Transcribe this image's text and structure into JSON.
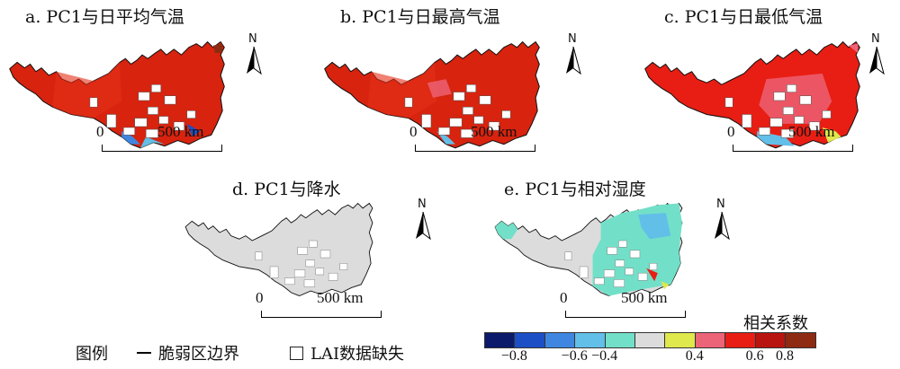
{
  "panels": {
    "a": {
      "title": "a. PC1与日平均气温"
    },
    "b": {
      "title": "b. PC1与日最高气温"
    },
    "c": {
      "title": "c. PC1与日最低气温"
    },
    "d": {
      "title": "d. PC1与降水"
    },
    "e": {
      "title": "e. PC1与相对湿度"
    }
  },
  "north_label": "N",
  "scale": {
    "start": "0",
    "end": "500 km"
  },
  "legend": {
    "title": "图例",
    "boundary": "脆弱区边界",
    "missing": "LAI数据缺失"
  },
  "colorbar": {
    "title": "相关系数",
    "colors": [
      "#0b1a6b",
      "#1c4fc6",
      "#3f86e0",
      "#62bfe8",
      "#72e0c8",
      "#dcdcdc",
      "#dfe84c",
      "#ec6478",
      "#e81e14",
      "#b81410",
      "#8e2a12"
    ],
    "labels": [
      "−0.8",
      "−0.6",
      "−0.4",
      "0.4",
      "0.6",
      "0.8"
    ]
  }
}
